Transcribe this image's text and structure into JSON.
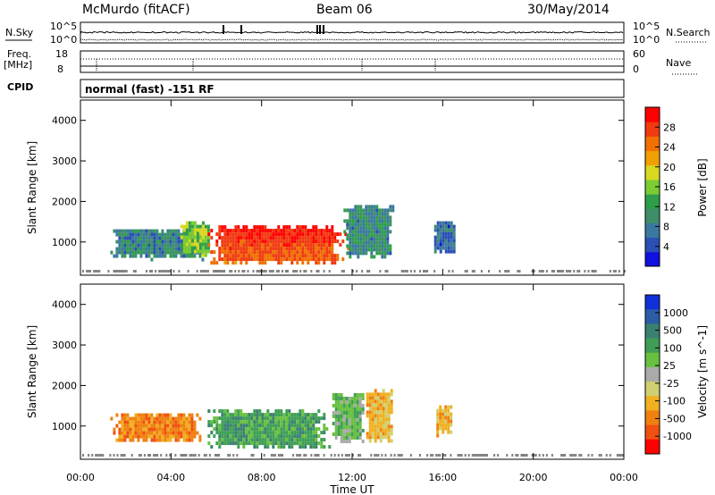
{
  "header": {
    "station": "McMurdo (fitACF)",
    "beam": "Beam 06",
    "date": "30/May/2014"
  },
  "status_panel": {
    "nsky_label": "N.Sky",
    "nsky_ticks": [
      "10^5",
      "10^0"
    ],
    "nsearch_label": "N.Search",
    "nsearch_ticks": [
      "10^5",
      "10^0"
    ],
    "freq_label": "Freq.",
    "freq_unit": "[MHz]",
    "freq_ticks": [
      "18",
      "8"
    ],
    "nave_label": "Nave",
    "nave_ticks": [
      "60",
      "0"
    ],
    "cpid_label": "CPID",
    "cpid_text": "normal (fast) -151 RF"
  },
  "colors": {
    "ground_scatter": "#7f7f7f",
    "power_scale": [
      "#1010e0",
      "#2a4fb5",
      "#3a78a0",
      "#3e8e6a",
      "#2f9e4a",
      "#7ccc33",
      "#d8d820",
      "#f0a000",
      "#f07000",
      "#f03a10",
      "#ff0000"
    ],
    "velocity_scale": [
      "#1030d8",
      "#2a5ca8",
      "#3a8070",
      "#3e9e55",
      "#68c040",
      "#aaaaaa",
      "#d0d070",
      "#f0b020",
      "#f08010",
      "#f05010",
      "#ff0000"
    ]
  },
  "chart_data": [
    {
      "type": "heatmap",
      "title": "",
      "xlabel": "Time UT",
      "ylabel": "Slant Range [km]",
      "xlim": [
        "00:00",
        "24:00"
      ],
      "x_tick_labels": [
        "00:00",
        "04:00",
        "08:00",
        "12:00",
        "16:00",
        "20:00",
        "00:00"
      ],
      "ylim": [
        180,
        4500
      ],
      "y_ticks": [
        1000,
        2000,
        3000,
        4000
      ],
      "colorbar": {
        "label": "Power [dB]",
        "range": [
          0,
          32
        ],
        "ticks": [
          4,
          8,
          12,
          16,
          20,
          24,
          28
        ]
      },
      "regions": [
        {
          "t_start": 1.2,
          "t_end": 5.5,
          "range_start": 600,
          "range_end": 1400,
          "value": 8
        },
        {
          "t_start": 4.3,
          "t_end": 5.8,
          "range_start": 700,
          "range_end": 1600,
          "value": 16
        },
        {
          "t_start": 5.5,
          "t_end": 11.8,
          "range_start": 450,
          "range_end": 1500,
          "value": 27
        },
        {
          "t_start": 11.5,
          "t_end": 13.8,
          "range_start": 600,
          "range_end": 2000,
          "value": 9
        },
        {
          "t_start": 15.5,
          "t_end": 16.6,
          "range_start": 700,
          "range_end": 1600,
          "value": 6
        }
      ]
    },
    {
      "type": "heatmap",
      "title": "",
      "xlabel": "Time UT",
      "ylabel": "Slant Range [km]",
      "xlim": [
        "00:00",
        "24:00"
      ],
      "x_tick_labels": [
        "00:00",
        "04:00",
        "08:00",
        "12:00",
        "16:00",
        "20:00",
        "00:00"
      ],
      "ylim": [
        180,
        4500
      ],
      "y_ticks": [
        1000,
        2000,
        3000,
        4000
      ],
      "colorbar": {
        "label": "Velocity [m s^-1]",
        "tick_labels": [
          "1000",
          "500",
          "100",
          "25",
          "-25",
          "-100",
          "-500",
          "-1000"
        ]
      },
      "regions": [
        {
          "t_start": 1.2,
          "t_end": 5.5,
          "range_start": 600,
          "range_end": 1400,
          "value": -100
        },
        {
          "t_start": 5.5,
          "t_end": 11.0,
          "range_start": 450,
          "range_end": 1500,
          "value": 120
        },
        {
          "t_start": 11.0,
          "t_end": 12.5,
          "range_start": 600,
          "range_end": 1900,
          "value": 60
        },
        {
          "t_start": 12.5,
          "t_end": 13.8,
          "range_start": 600,
          "range_end": 2000,
          "value": -90
        },
        {
          "t_start": 15.6,
          "t_end": 16.4,
          "range_start": 800,
          "range_end": 1600,
          "value": -80
        }
      ]
    }
  ]
}
